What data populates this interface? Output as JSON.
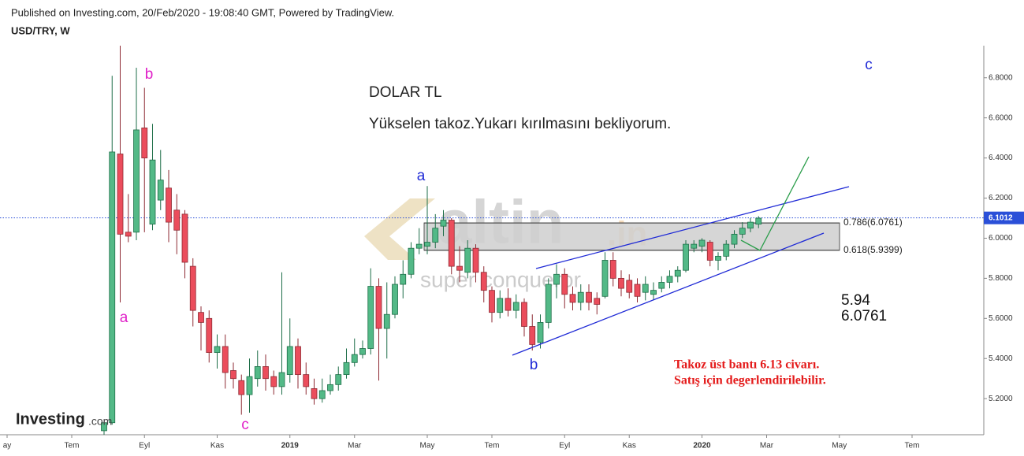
{
  "header": {
    "published": "Published on Investing.com, 20/Feb/2020 - 19:08:40 GMT, Powered by TradingView.",
    "symbol": "USD/TRY, W"
  },
  "chart_data": {
    "type": "candlestick",
    "up_color": "#53b987",
    "down_color": "#eb4d5c",
    "ylim": [
      5.02,
      6.96
    ],
    "yticks": [
      {
        "value": 5.2,
        "label": "5.2000"
      },
      {
        "value": 5.4,
        "label": "5.4000"
      },
      {
        "value": 5.6,
        "label": "5.6000"
      },
      {
        "value": 5.8,
        "label": "5.8000"
      },
      {
        "value": 6.0,
        "label": "6.0000"
      },
      {
        "value": 6.2,
        "label": "6.2000"
      },
      {
        "value": 6.4,
        "label": "6.4000"
      },
      {
        "value": 6.6,
        "label": "6.6000"
      },
      {
        "value": 6.8,
        "label": "6.8000"
      }
    ],
    "categories": [
      "ay",
      null,
      null,
      null,
      null,
      null,
      null,
      null,
      "Tem",
      null,
      null,
      null,
      null,
      null,
      null,
      null,
      null,
      "Eyl",
      null,
      null,
      null,
      null,
      null,
      null,
      null,
      null,
      "Kas",
      null,
      null,
      null,
      null,
      null,
      null,
      null,
      null,
      "2019",
      null,
      null,
      null,
      null,
      null,
      null,
      null,
      "Mar",
      null,
      null,
      null,
      null,
      null,
      null,
      null,
      null,
      "May",
      null,
      null,
      null,
      null,
      null,
      null,
      null,
      "Tem",
      null,
      null,
      null,
      null,
      null,
      null,
      null,
      null,
      "Eyl",
      null,
      null,
      null,
      null,
      null,
      null,
      null,
      "Kas",
      null,
      null,
      null,
      null,
      null,
      null,
      null,
      null,
      "2020",
      null,
      null,
      null,
      null,
      null,
      null,
      null,
      "Mar",
      null,
      null,
      null,
      null,
      null,
      null,
      null,
      null,
      "May",
      null,
      null,
      null,
      null,
      null,
      null,
      null,
      null,
      "Tem"
    ],
    "open": [
      null,
      null,
      null,
      null,
      null,
      null,
      null,
      null,
      null,
      null,
      null,
      null,
      5.04,
      5.08,
      6.42,
      6.03,
      6.03,
      6.55,
      6.07,
      6.19,
      6.25,
      6.14,
      6.12,
      5.86,
      5.63,
      5.6,
      5.43,
      5.46,
      5.34,
      5.29,
      5.22,
      5.3,
      5.36,
      5.31,
      5.26,
      5.32,
      5.46,
      5.32,
      5.25,
      5.2,
      5.24,
      5.27,
      5.32,
      5.38,
      5.42,
      5.45,
      5.76,
      5.55,
      5.62,
      5.77,
      5.82,
      5.95,
      5.96,
      5.98,
      6.06,
      6.09,
      5.86,
      5.83,
      5.95,
      5.83,
      5.74,
      5.63,
      5.7,
      5.64,
      5.68,
      5.56,
      5.48,
      5.58,
      5.77,
      5.82,
      5.72,
      5.68,
      5.73,
      5.7,
      5.71,
      5.89,
      5.8,
      5.79,
      5.77,
      5.73,
      5.72,
      5.75,
      5.78,
      5.81,
      5.84,
      5.95,
      5.96,
      5.98,
      5.89,
      5.91,
      5.97,
      6.02,
      6.05,
      6.07,
      null,
      null,
      null,
      null,
      null,
      null,
      null,
      null,
      null,
      null,
      null,
      null,
      null,
      null,
      null,
      null,
      null,
      null,
      null
    ],
    "high": [
      null,
      null,
      null,
      null,
      null,
      null,
      null,
      null,
      null,
      null,
      null,
      null,
      5.09,
      6.81,
      6.96,
      6.22,
      6.85,
      6.75,
      6.57,
      6.44,
      6.34,
      6.22,
      6.14,
      5.9,
      5.66,
      5.64,
      5.52,
      5.52,
      5.38,
      5.32,
      5.4,
      5.44,
      5.42,
      5.34,
      5.83,
      5.6,
      5.5,
      5.38,
      5.3,
      5.3,
      5.32,
      5.36,
      5.45,
      5.5,
      5.49,
      5.85,
      5.8,
      5.78,
      5.81,
      5.89,
      5.98,
      6.05,
      6.26,
      6.12,
      6.14,
      6.1,
      5.96,
      5.99,
      5.97,
      5.86,
      5.76,
      5.74,
      5.75,
      5.72,
      5.7,
      5.62,
      5.62,
      5.8,
      5.87,
      5.85,
      5.76,
      5.77,
      5.77,
      5.73,
      5.93,
      5.93,
      5.84,
      5.82,
      5.8,
      5.81,
      5.78,
      5.81,
      5.84,
      5.86,
      5.99,
      5.99,
      6.0,
      5.99,
      5.93,
      5.99,
      6.04,
      6.08,
      6.1,
      6.11,
      null,
      null,
      null,
      null,
      null,
      null,
      null,
      null,
      null,
      null,
      null,
      null,
      null,
      null,
      null,
      null,
      null,
      null,
      null
    ],
    "low": [
      null,
      null,
      null,
      null,
      null,
      null,
      null,
      null,
      null,
      null,
      null,
      null,
      5.02,
      5.07,
      5.68,
      5.98,
      5.99,
      6.03,
      6.04,
      6.14,
      5.98,
      5.92,
      5.8,
      5.56,
      5.44,
      5.38,
      5.35,
      5.25,
      5.25,
      5.12,
      5.13,
      5.26,
      5.24,
      5.22,
      5.22,
      5.28,
      5.25,
      5.22,
      5.17,
      5.18,
      5.22,
      5.24,
      5.3,
      5.36,
      5.4,
      5.42,
      5.29,
      5.4,
      5.6,
      5.7,
      5.8,
      5.92,
      5.92,
      5.95,
      6.01,
      5.82,
      5.78,
      5.8,
      5.78,
      5.68,
      5.58,
      5.6,
      5.61,
      5.6,
      5.51,
      5.44,
      5.45,
      5.55,
      5.7,
      5.65,
      5.64,
      5.64,
      5.64,
      5.62,
      5.7,
      5.76,
      5.71,
      5.7,
      5.68,
      5.69,
      5.69,
      5.73,
      5.75,
      5.78,
      5.83,
      5.93,
      5.93,
      5.86,
      5.84,
      5.89,
      5.95,
      6.0,
      6.03,
      6.05,
      null,
      null,
      null,
      null,
      null,
      null,
      null,
      null,
      null,
      null,
      null,
      null,
      null,
      null,
      null,
      null,
      null,
      null,
      null
    ],
    "close": [
      null,
      null,
      null,
      null,
      null,
      null,
      null,
      null,
      null,
      null,
      null,
      null,
      5.08,
      6.43,
      6.02,
      6.01,
      6.54,
      6.4,
      6.39,
      6.29,
      6.08,
      6.04,
      5.88,
      5.64,
      5.58,
      5.43,
      5.46,
      5.33,
      5.3,
      5.22,
      5.31,
      5.36,
      5.3,
      5.26,
      5.33,
      5.46,
      5.32,
      5.26,
      5.2,
      5.24,
      5.27,
      5.32,
      5.38,
      5.42,
      5.45,
      5.76,
      5.55,
      5.62,
      5.77,
      5.82,
      5.95,
      5.97,
      5.98,
      6.05,
      6.09,
      5.86,
      5.84,
      5.95,
      5.83,
      5.74,
      5.63,
      5.7,
      5.64,
      5.68,
      5.56,
      5.47,
      5.58,
      5.77,
      5.82,
      5.72,
      5.68,
      5.73,
      5.68,
      5.67,
      5.89,
      5.8,
      5.75,
      5.73,
      5.71,
      5.77,
      5.74,
      5.78,
      5.81,
      5.84,
      5.97,
      5.97,
      5.99,
      5.89,
      5.91,
      5.97,
      6.02,
      6.05,
      6.08,
      6.1,
      null,
      null,
      null,
      null,
      null,
      null,
      null,
      null,
      null,
      null,
      null,
      null,
      null,
      null,
      null,
      null,
      null,
      null,
      null
    ],
    "current_price": 6.1012,
    "fib_levels": [
      {
        "value": 6.0761,
        "label": "0.786(6.0761)"
      },
      {
        "value": 5.9399,
        "label": "0.618(5.9399)"
      }
    ],
    "annotations": [
      "a",
      "b",
      "c",
      "a",
      "b",
      "c",
      "DOLAR TL",
      "Yükselen takoz.Yukarı kırılmasını bekliyorum.",
      "5.94",
      "6.0761",
      "Takoz üst bantı  6.13 civarı.",
      "Satış için degerlendirilebilir."
    ]
  },
  "watermark": {
    "brand": "altin",
    "suffix": ".in",
    "slogan": "super conqueror"
  },
  "logo": {
    "name": "Investing",
    "suffix": ".com"
  }
}
